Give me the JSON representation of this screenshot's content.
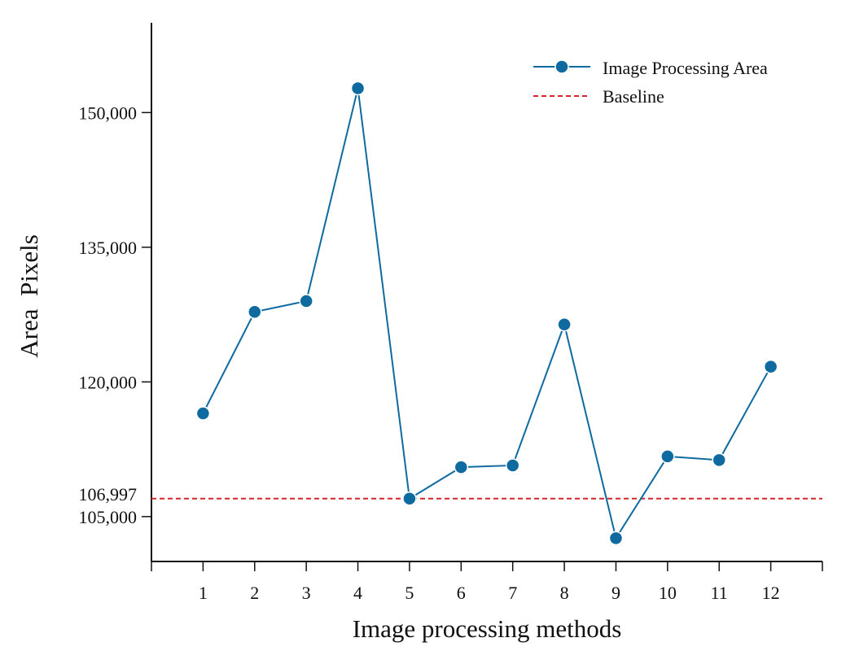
{
  "chart_data": {
    "type": "line",
    "xlabel": "Image processing methods",
    "ylabel": "Area  Pixels",
    "categories": [
      "1",
      "2",
      "3",
      "4",
      "5",
      "6",
      "7",
      "8",
      "9",
      "10",
      "11",
      "12"
    ],
    "series": [
      {
        "name": "Image Processing Area",
        "color": "#0f6aa0",
        "marker": "circle",
        "values": [
          116500,
          127800,
          129000,
          152700,
          107000,
          110500,
          110700,
          126400,
          102600,
          111700,
          111300,
          121700
        ]
      }
    ],
    "baseline": {
      "name": "Baseline",
      "value": 106997,
      "color": "#d62728",
      "style": "dashed"
    },
    "yticks": [
      105000,
      120000,
      135000,
      150000
    ],
    "ytick_labels": [
      "105,000",
      "120,000",
      "135,000",
      "150,000"
    ],
    "baseline_tick_label": "106,997",
    "ylim": [
      100000,
      160000
    ],
    "xlim": [
      0,
      13
    ],
    "grid": false,
    "legend_position": "top-right"
  }
}
